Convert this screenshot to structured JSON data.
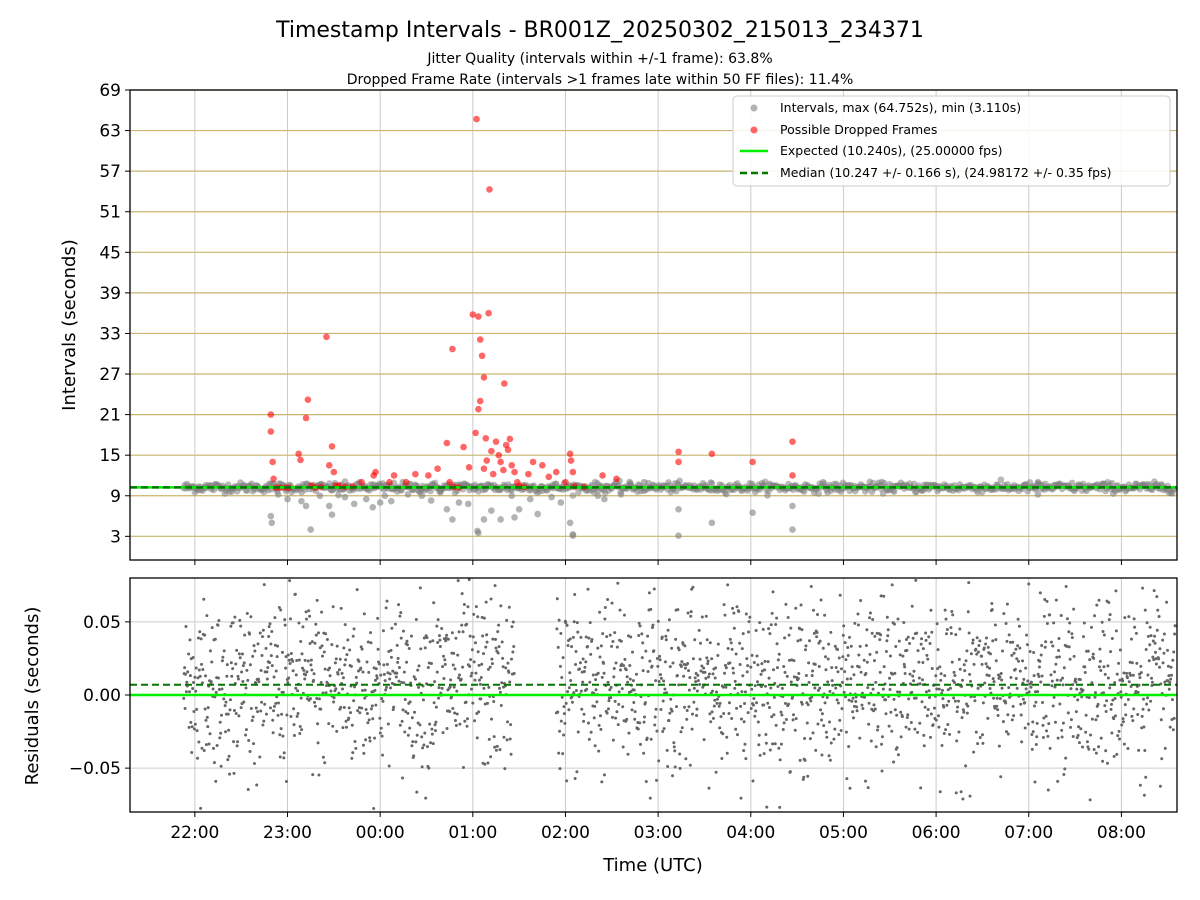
{
  "title": "Timestamp Intervals - BR001Z_20250302_215013_234371",
  "subtitle1": "Jitter Quality (intervals within +/-1 frame): 63.8%",
  "subtitle2": "Dropped Frame Rate (intervals >1 frames late within 50 FF files): 11.4%",
  "colors": {
    "intervals": "#808080",
    "dropped": "#ff0000",
    "expected": "#00ee00",
    "median": "#007700",
    "hgrid_top": "#c8b46e",
    "grid": "#cccccc"
  },
  "chart_data": [
    {
      "type": "scatter",
      "panel": "top",
      "ylabel": "Intervals (seconds)",
      "ylim": [
        -0.5,
        69
      ],
      "yticks": [
        "3",
        "9",
        "15",
        "21",
        "27",
        "33",
        "39",
        "45",
        "51",
        "57",
        "63",
        "69"
      ],
      "x_range_hours": [
        21.3,
        32.6
      ],
      "expected_y": 10.24,
      "median_y": 10.247,
      "legend_position": "upper right",
      "legend": [
        "Intervals, max (64.752s), min (3.110s)",
        "Possible Dropped Frames",
        "Expected (10.240s), (25.00000 fps)",
        "Median (10.247 +/- 0.166 s), (24.98172 +/- 0.35 fps)"
      ],
      "dropped_frames": [
        [
          22.82,
          21.0
        ],
        [
          22.82,
          18.5
        ],
        [
          22.84,
          14.0
        ],
        [
          22.85,
          11.5
        ],
        [
          22.88,
          10.2
        ],
        [
          22.92,
          10.2
        ],
        [
          22.98,
          10.2
        ],
        [
          23.02,
          10.2
        ],
        [
          23.12,
          15.2
        ],
        [
          23.14,
          14.3
        ],
        [
          23.22,
          23.2
        ],
        [
          23.2,
          20.5
        ],
        [
          23.26,
          10.5
        ],
        [
          23.3,
          10.2
        ],
        [
          23.36,
          10.3
        ],
        [
          23.42,
          32.5
        ],
        [
          23.48,
          16.3
        ],
        [
          23.45,
          13.5
        ],
        [
          23.5,
          12.5
        ],
        [
          23.52,
          10.5
        ],
        [
          23.56,
          10.5
        ],
        [
          23.62,
          10.3
        ],
        [
          23.7,
          10.4
        ],
        [
          23.8,
          11.0
        ],
        [
          23.95,
          12.5
        ],
        [
          23.93,
          12.0
        ],
        [
          24.1,
          11.0
        ],
        [
          24.15,
          12.0
        ],
        [
          24.28,
          11.0
        ],
        [
          24.38,
          12.2
        ],
        [
          24.52,
          12.0
        ],
        [
          24.62,
          13.0
        ],
        [
          24.72,
          16.8
        ],
        [
          24.78,
          30.7
        ],
        [
          24.75,
          11.0
        ],
        [
          24.8,
          10.3
        ],
        [
          24.85,
          10.2
        ],
        [
          24.9,
          16.2
        ],
        [
          24.96,
          13.2
        ],
        [
          25.0,
          35.8
        ],
        [
          25.04,
          64.7
        ],
        [
          25.06,
          35.5
        ],
        [
          25.08,
          32.1
        ],
        [
          25.1,
          29.7
        ],
        [
          25.12,
          26.5
        ],
        [
          25.08,
          23.0
        ],
        [
          25.06,
          21.8
        ],
        [
          25.03,
          18.3
        ],
        [
          25.14,
          17.5
        ],
        [
          25.17,
          36.0
        ],
        [
          25.18,
          54.3
        ],
        [
          25.2,
          15.6
        ],
        [
          25.15,
          14.2
        ],
        [
          25.12,
          13.0
        ],
        [
          25.22,
          12.2
        ],
        [
          25.25,
          17.0
        ],
        [
          25.28,
          15.0
        ],
        [
          25.3,
          14.0
        ],
        [
          25.33,
          12.8
        ],
        [
          25.34,
          25.6
        ],
        [
          25.36,
          16.5
        ],
        [
          25.38,
          15.8
        ],
        [
          25.4,
          17.4
        ],
        [
          25.42,
          13.5
        ],
        [
          25.45,
          12.5
        ],
        [
          25.48,
          11.0
        ],
        [
          25.5,
          10.5
        ],
        [
          25.55,
          10.3
        ],
        [
          25.6,
          12.2
        ],
        [
          25.65,
          14.0
        ],
        [
          25.75,
          13.5
        ],
        [
          25.82,
          11.8
        ],
        [
          25.9,
          12.5
        ],
        [
          26.0,
          11.0
        ],
        [
          26.05,
          15.2
        ],
        [
          26.06,
          14.2
        ],
        [
          26.08,
          12.5
        ],
        [
          26.1,
          10.4
        ],
        [
          26.2,
          10.3
        ],
        [
          26.4,
          12.0
        ],
        [
          26.55,
          11.5
        ],
        [
          27.22,
          15.5
        ],
        [
          27.22,
          14.0
        ],
        [
          27.58,
          15.2
        ],
        [
          28.02,
          14.0
        ],
        [
          28.45,
          17.0
        ],
        [
          28.45,
          12.0
        ]
      ],
      "interval_outliers": [
        [
          22.82,
          6.0
        ],
        [
          22.83,
          5.0
        ],
        [
          22.9,
          9.2
        ],
        [
          23.0,
          8.5
        ],
        [
          23.15,
          8.2
        ],
        [
          23.2,
          7.5
        ],
        [
          23.25,
          4.0
        ],
        [
          23.35,
          9.0
        ],
        [
          23.45,
          7.5
        ],
        [
          23.48,
          6.2
        ],
        [
          23.62,
          8.8
        ],
        [
          23.72,
          7.8
        ],
        [
          23.85,
          8.5
        ],
        [
          23.92,
          7.3
        ],
        [
          24.05,
          9.0
        ],
        [
          24.12,
          8.2
        ],
        [
          24.3,
          9.2
        ],
        [
          24.45,
          9.0
        ],
        [
          24.55,
          8.3
        ],
        [
          24.65,
          9.5
        ],
        [
          24.72,
          7.0
        ],
        [
          24.78,
          5.5
        ],
        [
          24.85,
          8.0
        ],
        [
          24.95,
          7.8
        ],
        [
          25.05,
          3.8
        ],
        [
          25.06,
          3.5
        ],
        [
          25.12,
          5.5
        ],
        [
          25.2,
          6.8
        ],
        [
          25.3,
          5.5
        ],
        [
          25.42,
          9.0
        ],
        [
          25.45,
          5.8
        ],
        [
          25.5,
          7.0
        ],
        [
          25.62,
          8.5
        ],
        [
          25.7,
          6.3
        ],
        [
          25.85,
          8.8
        ],
        [
          25.95,
          8.0
        ],
        [
          26.05,
          5.0
        ],
        [
          26.08,
          3.3
        ],
        [
          26.08,
          3.1
        ],
        [
          26.35,
          9.0
        ],
        [
          26.42,
          8.5
        ],
        [
          26.6,
          9.2
        ],
        [
          26.7,
          10.8
        ],
        [
          26.85,
          11.0
        ],
        [
          27.22,
          7.0
        ],
        [
          27.22,
          3.1
        ],
        [
          27.58,
          5.0
        ],
        [
          28.02,
          6.5
        ],
        [
          28.45,
          7.5
        ],
        [
          28.45,
          4.0
        ],
        [
          31.1,
          11.0
        ],
        [
          31.1,
          9.2
        ],
        [
          24.0,
          8.0
        ],
        [
          23.55,
          9.1
        ]
      ]
    },
    {
      "type": "scatter",
      "panel": "bottom",
      "xlabel": "Time (UTC)",
      "ylabel": "Residuals (seconds)",
      "ylim": [
        -0.08,
        0.08
      ],
      "yticks": [
        "0.05",
        "0.00",
        "−0.05"
      ],
      "xticks": [
        "22:00",
        "23:00",
        "00:00",
        "01:00",
        "02:00",
        "03:00",
        "04:00",
        "05:00",
        "06:00",
        "07:00",
        "08:00"
      ],
      "expected_residual": 0.0,
      "median_residual": 0.007,
      "point_spread_sigma": 0.03,
      "data_gap_hours": [
        25.45,
        25.9
      ]
    }
  ]
}
